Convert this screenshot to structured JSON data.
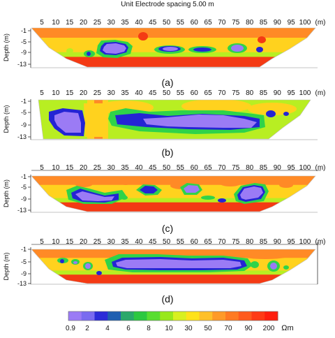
{
  "title": "Unit Electrode spacing 5.00 m",
  "x_unit": "(m)",
  "x_ticks": [
    "5",
    "10",
    "15",
    "20",
    "25",
    "30",
    "35",
    "40",
    "45",
    "50",
    "55",
    "60",
    "65",
    "70",
    "75",
    "80",
    "85",
    "90",
    "95",
    "100"
  ],
  "y_label": "Depth (m)",
  "y_ticks": [
    "-1",
    "-5",
    "-9",
    "-13"
  ],
  "panels": [
    {
      "label": "(a)"
    },
    {
      "label": "(b)"
    },
    {
      "label": "(c)"
    },
    {
      "label": "(d)"
    }
  ],
  "colorbar": {
    "ticks": [
      "0.9",
      "2",
      "4",
      "6",
      "8",
      "10",
      "30",
      "50",
      "70",
      "90",
      "200"
    ],
    "unit": "Ωm",
    "colors": [
      "#9b7bf5",
      "#7a6bf0",
      "#2c2cd8",
      "#1f5fb0",
      "#2aa86a",
      "#2cc840",
      "#58dd30",
      "#98e81c",
      "#d8f020",
      "#ffe21a",
      "#ffc02a",
      "#ff9a28",
      "#ff7a22",
      "#ff5a1e",
      "#ff3a16",
      "#ff1e0e"
    ]
  }
}
